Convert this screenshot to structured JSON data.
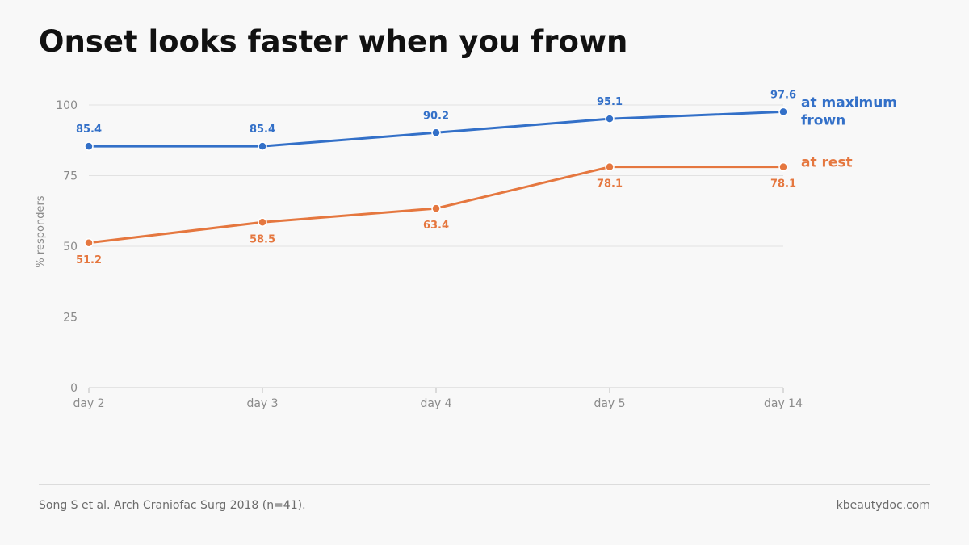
{
  "title": "Onset looks faster when you frown",
  "footer": {
    "source": "Song S et al. Arch Craniofac Surg 2018 (n=41).",
    "site": "kbeautydoc.com"
  },
  "colors": {
    "frown": "#3370c8",
    "rest": "#e5773f",
    "grid": "#e2e2e2",
    "axis_text": "#8a8a8a"
  },
  "chart_data": {
    "type": "line",
    "categories": [
      "day 2",
      "day 3",
      "day 4",
      "day 5",
      "day 14"
    ],
    "ylabel": "% responders",
    "xlabel": "",
    "ylim": [
      0,
      100
    ],
    "yticks": [
      0,
      25,
      50,
      75,
      100
    ],
    "grid": true,
    "legend": "direct labels at line ends (right)",
    "series": [
      {
        "key": "frown",
        "name_lines": [
          "at maximum",
          "frown"
        ],
        "values": [
          85.4,
          85.4,
          90.2,
          95.1,
          97.6
        ],
        "labels": [
          "85.4",
          "85.4",
          "90.2",
          "95.1",
          "97.6"
        ],
        "label_position": "above"
      },
      {
        "key": "rest",
        "name_lines": [
          "at rest"
        ],
        "values": [
          51.2,
          58.5,
          63.4,
          78.1,
          78.1
        ],
        "labels": [
          "51.2",
          "58.5",
          "63.4",
          "78.1",
          "78.1"
        ],
        "label_position": "below"
      }
    ]
  }
}
